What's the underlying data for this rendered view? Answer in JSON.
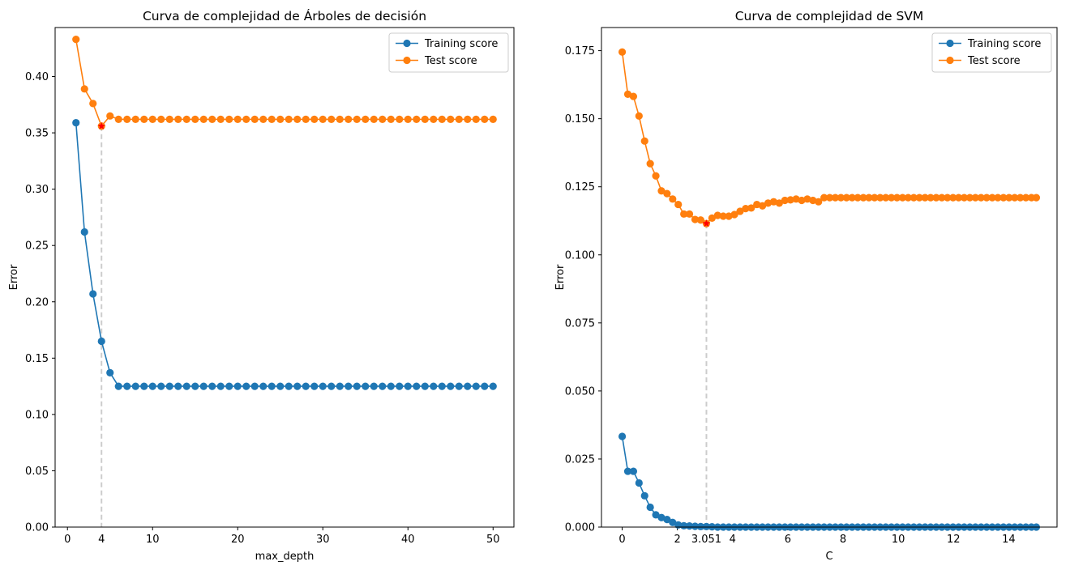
{
  "chart_data": [
    {
      "type": "line",
      "title": "Curva de complejidad de Árboles de decisión",
      "xlabel": "max_depth",
      "ylabel": "Error",
      "xlim": [
        -1.45,
        52.45
      ],
      "ylim": [
        0.0,
        0.4435
      ],
      "xticks": [
        0,
        10,
        20,
        30,
        40,
        50
      ],
      "yticks": [
        0.0,
        0.05,
        0.1,
        0.15,
        0.2,
        0.25,
        0.3,
        0.35,
        0.4
      ],
      "ytick_format": 2,
      "legend_position": "upper-right",
      "grid": false,
      "best_x": 4,
      "best_y": 0.356,
      "best_label": "4",
      "x": [
        1,
        2,
        3,
        4,
        5,
        6,
        7,
        8,
        9,
        10,
        11,
        12,
        13,
        14,
        15,
        16,
        17,
        18,
        19,
        20,
        21,
        22,
        23,
        24,
        25,
        26,
        27,
        28,
        29,
        30,
        31,
        32,
        33,
        34,
        35,
        36,
        37,
        38,
        39,
        40,
        41,
        42,
        43,
        44,
        45,
        46,
        47,
        48,
        49,
        50
      ],
      "series": [
        {
          "name": "Training score",
          "color": "#1f77b4",
          "values": [
            0.359,
            0.262,
            0.207,
            0.165,
            0.137,
            0.125,
            0.125,
            0.125,
            0.125,
            0.125,
            0.125,
            0.125,
            0.125,
            0.125,
            0.125,
            0.125,
            0.125,
            0.125,
            0.125,
            0.125,
            0.125,
            0.125,
            0.125,
            0.125,
            0.125,
            0.125,
            0.125,
            0.125,
            0.125,
            0.125,
            0.125,
            0.125,
            0.125,
            0.125,
            0.125,
            0.125,
            0.125,
            0.125,
            0.125,
            0.125,
            0.125,
            0.125,
            0.125,
            0.125,
            0.125,
            0.125,
            0.125,
            0.125,
            0.125,
            0.125
          ]
        },
        {
          "name": "Test score",
          "color": "#ff7f0e",
          "values": [
            0.433,
            0.389,
            0.376,
            0.356,
            0.365,
            0.362,
            0.362,
            0.362,
            0.362,
            0.362,
            0.362,
            0.362,
            0.362,
            0.362,
            0.362,
            0.362,
            0.362,
            0.362,
            0.362,
            0.362,
            0.362,
            0.362,
            0.362,
            0.362,
            0.362,
            0.362,
            0.362,
            0.362,
            0.362,
            0.362,
            0.362,
            0.362,
            0.362,
            0.362,
            0.362,
            0.362,
            0.362,
            0.362,
            0.362,
            0.362,
            0.362,
            0.362,
            0.362,
            0.362,
            0.362,
            0.362,
            0.362,
            0.362,
            0.362,
            0.362
          ]
        }
      ]
    },
    {
      "type": "line",
      "title": "Curva de complejidad de SVM",
      "xlabel": "C",
      "ylabel": "Error",
      "xlim": [
        -0.75,
        15.75
      ],
      "ylim": [
        0.0,
        0.1835
      ],
      "xticks": [
        0,
        2,
        4,
        6,
        8,
        10,
        12,
        14
      ],
      "yticks": [
        0.0,
        0.025,
        0.05,
        0.075,
        0.1,
        0.125,
        0.15,
        0.175
      ],
      "ytick_format": 3,
      "legend_position": "upper-right",
      "grid": false,
      "best_x": 3.051,
      "best_y": 0.1115,
      "best_label": "3.051",
      "x": [
        0.001,
        0.204,
        0.407,
        0.61,
        0.813,
        1.016,
        1.219,
        1.422,
        1.625,
        1.828,
        2.031,
        2.234,
        2.437,
        2.64,
        2.843,
        3.051,
        3.254,
        3.457,
        3.66,
        3.863,
        4.066,
        4.269,
        4.472,
        4.675,
        4.878,
        5.081,
        5.284,
        5.487,
        5.69,
        5.893,
        6.096,
        6.299,
        6.502,
        6.705,
        6.908,
        7.111,
        7.314,
        7.517,
        7.72,
        7.923,
        8.126,
        8.329,
        8.532,
        8.735,
        8.938,
        9.141,
        9.344,
        9.547,
        9.75,
        9.953,
        10.156,
        10.359,
        10.562,
        10.765,
        10.968,
        11.171,
        11.374,
        11.577,
        11.78,
        11.983,
        12.186,
        12.389,
        12.592,
        12.795,
        12.998,
        13.201,
        13.404,
        13.607,
        13.81,
        14.013,
        14.216,
        14.419,
        14.622,
        14.825,
        15.0
      ],
      "series": [
        {
          "name": "Training score",
          "color": "#1f77b4",
          "values": [
            0.0333,
            0.0205,
            0.0205,
            0.0162,
            0.0115,
            0.0073,
            0.0045,
            0.0035,
            0.0028,
            0.0017,
            0.0008,
            0.0005,
            0.0004,
            0.0003,
            0.0002,
            0.0002,
            0.0001,
            0,
            0,
            0,
            0,
            0,
            0,
            0,
            0,
            0,
            0,
            0,
            0,
            0,
            0,
            0,
            0,
            0,
            0,
            0,
            0,
            0,
            0,
            0,
            0,
            0,
            0,
            0,
            0,
            0,
            0,
            0,
            0,
            0,
            0,
            0,
            0,
            0,
            0,
            0,
            0,
            0,
            0,
            0,
            0,
            0,
            0,
            0,
            0,
            0,
            0,
            0,
            0,
            0,
            0,
            0,
            0,
            0,
            0
          ]
        },
        {
          "name": "Test score",
          "color": "#ff7f0e",
          "values": [
            0.1745,
            0.159,
            0.1582,
            0.151,
            0.1418,
            0.1335,
            0.129,
            0.1235,
            0.1225,
            0.1205,
            0.1185,
            0.115,
            0.115,
            0.113,
            0.1128,
            0.1115,
            0.1135,
            0.1145,
            0.1142,
            0.1142,
            0.1148,
            0.116,
            0.117,
            0.1172,
            0.1185,
            0.118,
            0.119,
            0.1195,
            0.119,
            0.12,
            0.1202,
            0.1205,
            0.12,
            0.1205,
            0.12,
            0.1195,
            0.121,
            0.121,
            0.121,
            0.121,
            0.121,
            0.121,
            0.121,
            0.121,
            0.121,
            0.121,
            0.121,
            0.121,
            0.121,
            0.121,
            0.121,
            0.121,
            0.121,
            0.121,
            0.121,
            0.121,
            0.121,
            0.121,
            0.121,
            0.121,
            0.121,
            0.121,
            0.121,
            0.121,
            0.121,
            0.121,
            0.121,
            0.121,
            0.121,
            0.121,
            0.121,
            0.121,
            0.121,
            0.121,
            0.121
          ]
        }
      ]
    }
  ]
}
